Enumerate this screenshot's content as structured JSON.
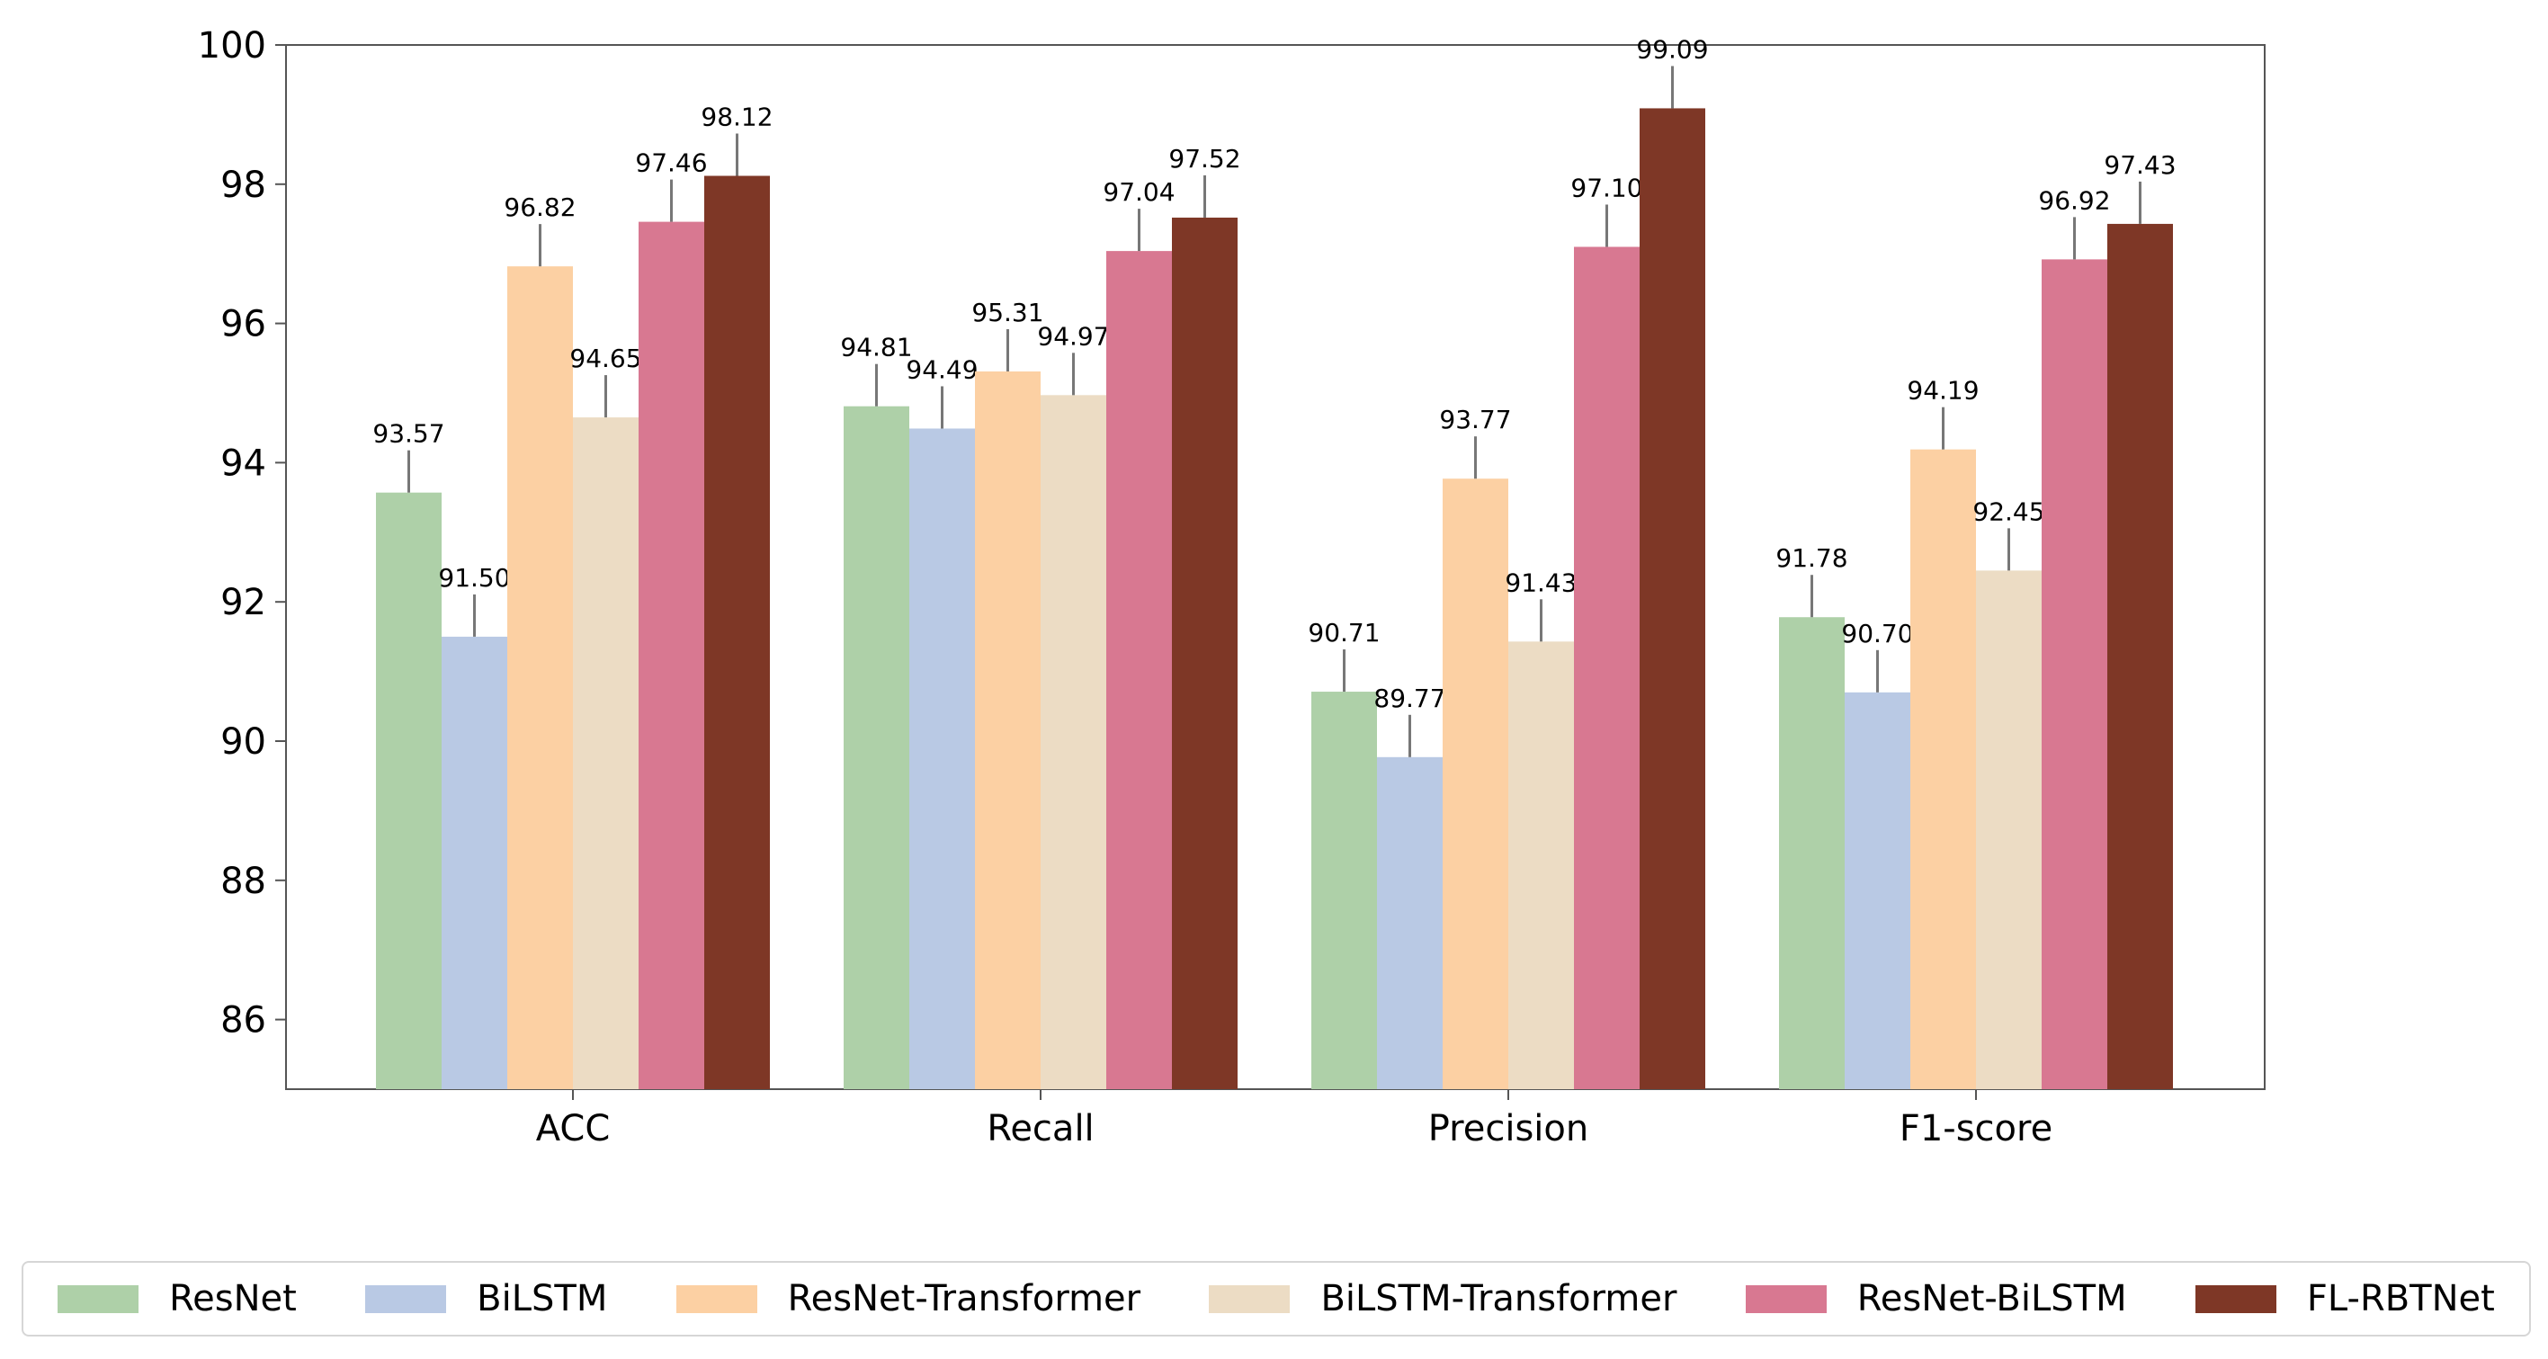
{
  "chart_data": {
    "type": "bar",
    "title": "",
    "xlabel": "",
    "ylabel": "",
    "ylim": [
      85,
      100
    ],
    "yticks": [
      86,
      88,
      90,
      92,
      94,
      96,
      98,
      100
    ],
    "ytick_labels": [
      "86",
      "88",
      "90",
      "92",
      "94",
      "96",
      "98",
      "100"
    ],
    "categories": [
      "ACC",
      "Recall",
      "Precision",
      "F1-score"
    ],
    "legend_position": "bottom",
    "series": [
      {
        "name": "ResNet",
        "color": "#aed0a8",
        "values": [
          93.57,
          94.81,
          90.71,
          91.78
        ],
        "labels": [
          "93.57",
          "94.81",
          "90.71",
          "91.78"
        ]
      },
      {
        "name": "BiLSTM",
        "color": "#b9c9e4",
        "values": [
          91.5,
          94.49,
          89.77,
          90.7
        ],
        "labels": [
          "91.50",
          "94.49",
          "89.77",
          "90.70"
        ]
      },
      {
        "name": "ResNet-Transformer",
        "color": "#fcd0a3",
        "values": [
          96.82,
          95.31,
          93.77,
          94.19
        ],
        "labels": [
          "96.82",
          "95.31",
          "93.77",
          "94.19"
        ]
      },
      {
        "name": "BiLSTM-Transformer",
        "color": "#ecdcc4",
        "values": [
          94.65,
          94.97,
          91.43,
          92.45
        ],
        "labels": [
          "94.65",
          "94.97",
          "91.43",
          "92.45"
        ]
      },
      {
        "name": "ResNet-BiLSTM",
        "color": "#d87891",
        "values": [
          97.46,
          97.04,
          97.1,
          96.92
        ],
        "labels": [
          "97.46",
          "97.04",
          "97.10",
          "96.92"
        ]
      },
      {
        "name": "FL-RBTNet",
        "color": "#7e3726",
        "values": [
          98.12,
          97.52,
          99.09,
          97.43
        ],
        "labels": [
          "98.12",
          "97.52",
          "99.09",
          "97.43"
        ]
      }
    ]
  }
}
